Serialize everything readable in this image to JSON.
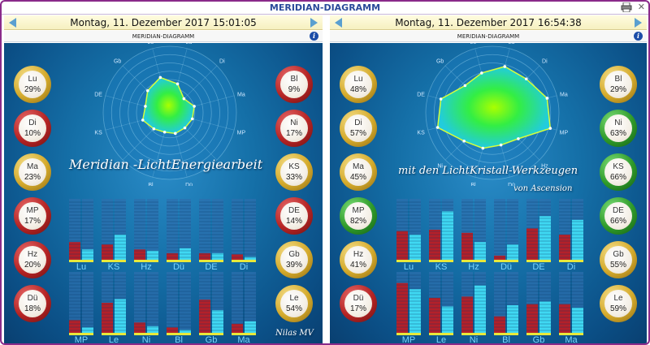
{
  "window": {
    "title": "MERIDIAN-DIAGRAMM"
  },
  "panels": [
    {
      "date": "Montag, 11. Dezember 2017 15:01:05",
      "subtitle": "MERIDIAN-DIAGRAMM",
      "left_orbs": [
        {
          "code": "Lu",
          "pct": "29%",
          "color": "gold"
        },
        {
          "code": "Di",
          "pct": "10%",
          "color": "red"
        },
        {
          "code": "Ma",
          "pct": "23%",
          "color": "gold"
        },
        {
          "code": "MP",
          "pct": "17%",
          "color": "red"
        },
        {
          "code": "Hz",
          "pct": "20%",
          "color": "red"
        },
        {
          "code": "Dü",
          "pct": "18%",
          "color": "red"
        }
      ],
      "right_orbs": [
        {
          "code": "Bl",
          "pct": "9%",
          "color": "red"
        },
        {
          "code": "Ni",
          "pct": "17%",
          "color": "red"
        },
        {
          "code": "KS",
          "pct": "33%",
          "color": "gold"
        },
        {
          "code": "DE",
          "pct": "14%",
          "color": "red"
        },
        {
          "code": "Gb",
          "pct": "39%",
          "color": "gold"
        },
        {
          "code": "Le",
          "pct": "54%",
          "color": "gold"
        }
      ],
      "radar_labels": [
        "Le",
        "Lu",
        "Di",
        "Ma",
        "MP",
        "Hz",
        "Dü",
        "Bl",
        "Ni",
        "KS",
        "DE",
        "Gb"
      ],
      "radar_values": [
        0.55,
        0.45,
        0.3,
        0.38,
        0.35,
        0.32,
        0.32,
        0.3,
        0.34,
        0.42,
        0.38,
        0.47
      ],
      "overlay_texts": [
        "Meridian -LichtEnergiearbeit",
        "Nilas MV"
      ],
      "bar_groups": [
        {
          "labels": [
            "Lu",
            "KS",
            "Hz",
            "Dü",
            "DE",
            "Di"
          ],
          "red": [
            0.3,
            0.26,
            0.18,
            0.12,
            0.12,
            0.1
          ],
          "cyan": [
            0.18,
            0.42,
            0.16,
            0.2,
            0.12,
            0.06
          ]
        },
        {
          "labels": [
            "MP",
            "Le",
            "Ni",
            "Bl",
            "Gb",
            "Ma"
          ],
          "red": [
            0.22,
            0.5,
            0.18,
            0.1,
            0.55,
            0.16
          ],
          "cyan": [
            0.1,
            0.56,
            0.12,
            0.06,
            0.38,
            0.2
          ]
        }
      ]
    },
    {
      "date": "Montag, 11. Dezember 2017 16:54:38",
      "subtitle": "MERIDIAN-DIAGRAMM",
      "left_orbs": [
        {
          "code": "Lu",
          "pct": "48%",
          "color": "gold"
        },
        {
          "code": "Di",
          "pct": "57%",
          "color": "gold"
        },
        {
          "code": "Ma",
          "pct": "45%",
          "color": "gold"
        },
        {
          "code": "MP",
          "pct": "82%",
          "color": "green"
        },
        {
          "code": "Hz",
          "pct": "41%",
          "color": "gold"
        },
        {
          "code": "Dü",
          "pct": "17%",
          "color": "red"
        }
      ],
      "right_orbs": [
        {
          "code": "Bl",
          "pct": "29%",
          "color": "gold"
        },
        {
          "code": "Ni",
          "pct": "63%",
          "color": "green"
        },
        {
          "code": "KS",
          "pct": "66%",
          "color": "green"
        },
        {
          "code": "DE",
          "pct": "66%",
          "color": "green"
        },
        {
          "code": "Gb",
          "pct": "55%",
          "color": "gold"
        },
        {
          "code": "Le",
          "pct": "59%",
          "color": "gold"
        }
      ],
      "radar_labels": [
        "Le",
        "Lu",
        "Di",
        "Ma",
        "MP",
        "Hz",
        "Dü",
        "Bl",
        "Ni",
        "KS",
        "DE",
        "Gb"
      ],
      "radar_values": [
        0.62,
        0.72,
        0.72,
        0.85,
        0.9,
        0.55,
        0.5,
        0.55,
        0.6,
        0.85,
        0.8,
        0.58
      ],
      "overlay_texts": [
        "mit den LichtKristall-Werkzeugen",
        "von Ascension"
      ],
      "bar_groups": [
        {
          "labels": [
            "Lu",
            "KS",
            "Hz",
            "Dü",
            "DE",
            "Di"
          ],
          "red": [
            0.48,
            0.5,
            0.45,
            0.08,
            0.52,
            0.42
          ],
          "cyan": [
            0.42,
            0.8,
            0.3,
            0.26,
            0.72,
            0.66
          ]
        },
        {
          "labels": [
            "MP",
            "Le",
            "Ni",
            "Bl",
            "Gb",
            "Ma"
          ],
          "red": [
            0.82,
            0.58,
            0.6,
            0.28,
            0.48,
            0.48
          ],
          "cyan": [
            0.72,
            0.44,
            0.78,
            0.46,
            0.52,
            0.42
          ]
        }
      ]
    }
  ]
}
